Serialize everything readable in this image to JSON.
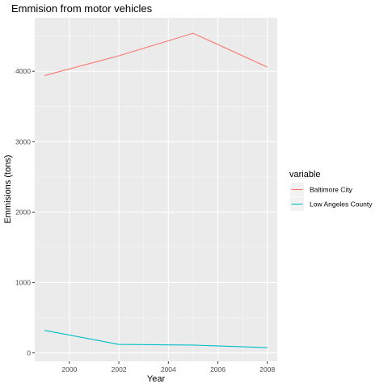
{
  "chart_data": {
    "type": "line",
    "title": "Emmision from motor vehicles",
    "xlabel": "Year",
    "ylabel": "Emmisions (tons)",
    "x": [
      1999,
      2002,
      2005,
      2008
    ],
    "xlim": [
      1998.6,
      2008.4
    ],
    "ylim": [
      -120,
      4760
    ],
    "x_ticks": [
      2000,
      2002,
      2004,
      2006,
      2008
    ],
    "y_ticks": [
      0,
      1000,
      2000,
      3000,
      4000
    ],
    "x_tick_labels": [
      "2000",
      "2002",
      "2004",
      "2006",
      "2008"
    ],
    "y_tick_labels": [
      "0",
      "1000",
      "2000",
      "3000",
      "4000"
    ],
    "grid": true,
    "legend": {
      "title": "variable",
      "position": "right"
    },
    "series": [
      {
        "name": "Baltimore City",
        "color": "#F8766D",
        "values": [
          3940,
          4220,
          4540,
          4060
        ]
      },
      {
        "name": "Low Angeles County",
        "color": "#00BFC4",
        "values": [
          320,
          120,
          110,
          75
        ]
      }
    ]
  }
}
